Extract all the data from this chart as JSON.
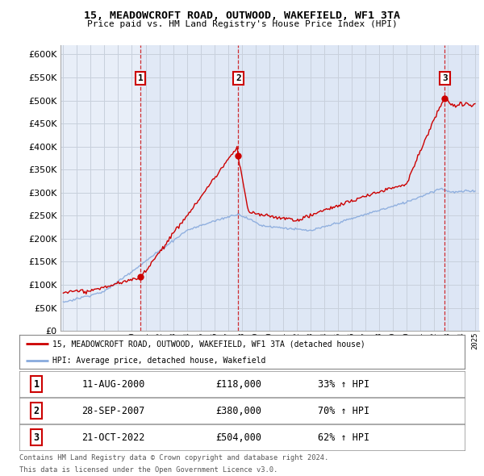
{
  "title1": "15, MEADOWCROFT ROAD, OUTWOOD, WAKEFIELD, WF1 3TA",
  "title2": "Price paid vs. HM Land Registry's House Price Index (HPI)",
  "background_color": "#ffffff",
  "plot_bg_color": "#e8eef8",
  "grid_color": "#c8d0dc",
  "red_line_color": "#cc0000",
  "blue_line_color": "#88aadd",
  "sale1_year": 2000.62,
  "sale1_price": 118000,
  "sale1_label": "1",
  "sale1_date": "11-AUG-2000",
  "sale1_hpi": "33% ↑ HPI",
  "sale2_year": 2007.75,
  "sale2_price": 380000,
  "sale2_label": "2",
  "sale2_date": "28-SEP-2007",
  "sale2_hpi": "70% ↑ HPI",
  "sale3_year": 2022.8,
  "sale3_price": 504000,
  "sale3_label": "3",
  "sale3_date": "21-OCT-2022",
  "sale3_hpi": "62% ↑ HPI",
  "ylim_min": 0,
  "ylim_max": 620000,
  "xlim_min": 1994.8,
  "xlim_max": 2025.3,
  "legend_line1": "15, MEADOWCROFT ROAD, OUTWOOD, WAKEFIELD, WF1 3TA (detached house)",
  "legend_line2": "HPI: Average price, detached house, Wakefield",
  "footnote1": "Contains HM Land Registry data © Crown copyright and database right 2024.",
  "footnote2": "This data is licensed under the Open Government Licence v3.0."
}
